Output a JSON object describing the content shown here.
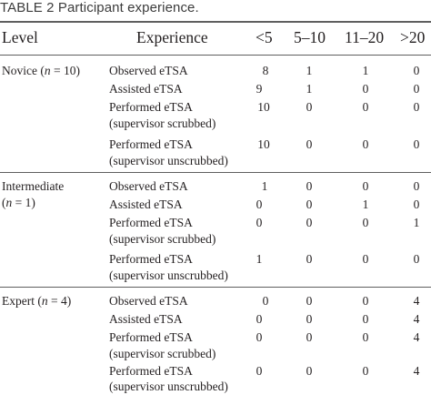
{
  "caption": "TABLE 2 Participant experience.",
  "headers": {
    "level": "Level",
    "experience": "Experience",
    "c1": "<5",
    "c2": "5–10",
    "c3": "11–20",
    "c4": ">20"
  },
  "groups": [
    {
      "level_line1_pre": "Novice (",
      "level_line1_n": "n",
      "level_line1_post": " = 10)",
      "level_line2_pre": "",
      "level_line2_n": "",
      "level_line2_post": "",
      "rows": [
        {
          "exp1": "Observed eTSA",
          "exp2": "",
          "v": [
            "8",
            "1",
            "1",
            "0"
          ]
        },
        {
          "exp1": "Assisted eTSA",
          "exp2": "",
          "v": [
            "9",
            "1",
            "0",
            "0"
          ]
        },
        {
          "exp1": "Performed eTSA",
          "exp2": "(supervisor scrubbed)",
          "v": [
            "10",
            "0",
            "0",
            "0"
          ]
        },
        {
          "exp1": "Performed eTSA",
          "exp2": "(supervisor unscrubbed)",
          "v": [
            "10",
            "0",
            "0",
            "0"
          ]
        }
      ]
    },
    {
      "level_line1_pre": "Intermediate",
      "level_line1_n": "",
      "level_line1_post": "",
      "level_line2_pre": "(",
      "level_line2_n": "n",
      "level_line2_post": " = 1)",
      "rows": [
        {
          "exp1": "Observed eTSA",
          "exp2": "",
          "v": [
            "1",
            "0",
            "0",
            "0"
          ]
        },
        {
          "exp1": "Assisted eTSA",
          "exp2": "",
          "v": [
            "0",
            "0",
            "1",
            "0"
          ]
        },
        {
          "exp1": "Performed eTSA",
          "exp2": "(supervisor scrubbed)",
          "v": [
            "0",
            "0",
            "0",
            "1"
          ]
        },
        {
          "exp1": "Performed eTSA",
          "exp2": "(supervisor unscrubbed)",
          "v": [
            "1",
            "0",
            "0",
            "0"
          ]
        }
      ]
    },
    {
      "level_line1_pre": "Expert (",
      "level_line1_n": "n",
      "level_line1_post": " = 4)",
      "level_line2_pre": "",
      "level_line2_n": "",
      "level_line2_post": "",
      "rows": [
        {
          "exp1": "Observed eTSA",
          "exp2": "",
          "v": [
            "0",
            "0",
            "0",
            "4"
          ]
        },
        {
          "exp1": "Assisted eTSA",
          "exp2": "",
          "v": [
            "0",
            "0",
            "0",
            "4"
          ]
        },
        {
          "exp1": "Performed eTSA",
          "exp2": "(supervisor scrubbed)",
          "v": [
            "0",
            "0",
            "0",
            "4"
          ]
        },
        {
          "exp1": "Performed eTSA",
          "exp2": "(supervisor unscrubbed)",
          "v": [
            "0",
            "0",
            "0",
            "4"
          ]
        }
      ]
    }
  ]
}
